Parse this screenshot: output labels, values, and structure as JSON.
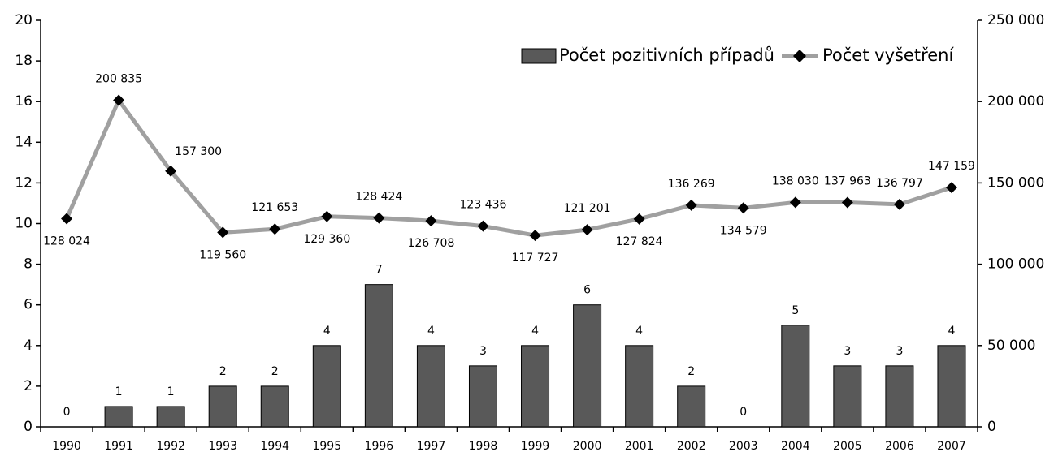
{
  "chart_data": {
    "type": "bar",
    "categories": [
      "1990",
      "1991",
      "1992",
      "1993",
      "1994",
      "1995",
      "1996",
      "1997",
      "1998",
      "1999",
      "2000",
      "2001",
      "2002",
      "2003",
      "2004",
      "2005",
      "2006",
      "2007"
    ],
    "series": [
      {
        "name": "Počet pozitivních případů",
        "type": "bar",
        "color": "#595959",
        "axis": "y",
        "values": [
          0,
          1,
          1,
          2,
          2,
          4,
          7,
          4,
          3,
          4,
          6,
          4,
          2,
          0,
          5,
          3,
          3,
          4
        ]
      },
      {
        "name": "Počet vyšetření",
        "type": "line",
        "color": "#a0a0a0",
        "marker_color": "#000000",
        "axis": "y2",
        "values": [
          128024,
          200835,
          157300,
          119560,
          121653,
          129360,
          128424,
          126708,
          123436,
          117727,
          121201,
          127824,
          136269,
          134579,
          138030,
          137963,
          136797,
          147159
        ],
        "value_labels": [
          "128 024",
          "200 835",
          "157 300",
          "119 560",
          "121 653",
          "129 360",
          "128 424",
          "126 708",
          "123 436",
          "117 727",
          "121 201",
          "127 824",
          "136 269",
          "134 579",
          "138 030",
          "137 963",
          "136 797",
          "147 159"
        ]
      }
    ],
    "ylim": [
      0,
      20
    ],
    "yticks": [
      0,
      2,
      4,
      6,
      8,
      10,
      12,
      14,
      16,
      18,
      20
    ],
    "y2lim": [
      0,
      250000
    ],
    "y2ticks": [
      0,
      {
        "value": 50000,
        "label": "50 000"
      },
      {
        "value": 100000,
        "label": "100 000"
      },
      {
        "value": 150000,
        "label": "150 000"
      },
      {
        "value": 200000,
        "label": "200 000"
      },
      {
        "value": 250000,
        "label": "250 000"
      }
    ],
    "legend": "upper right",
    "grid": false
  }
}
